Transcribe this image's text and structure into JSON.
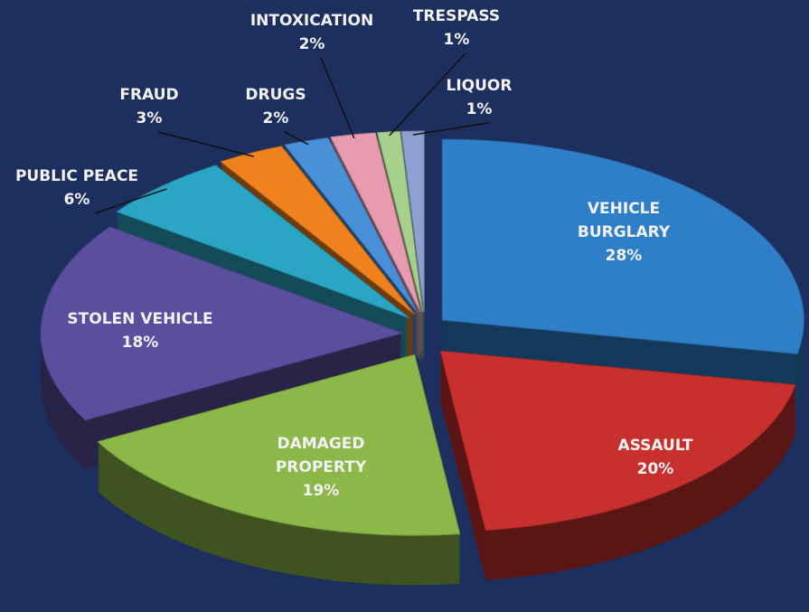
{
  "chart_data": {
    "type": "pie",
    "categories": [
      "VEHICLE BURGLARY",
      "ASSAULT",
      "DAMAGED PROPERTY",
      "STOLEN VEHICLE",
      "PUBLIC PEACE",
      "FRAUD",
      "DRUGS",
      "INTOXICATION",
      "TRESPASS",
      "LIQUOR"
    ],
    "values": [
      28,
      20,
      19,
      18,
      6,
      3,
      2,
      2,
      1,
      1
    ],
    "value_labels": [
      "28%",
      "20%",
      "19%",
      "18%",
      "6%",
      "3%",
      "2%",
      "2%",
      "1%",
      "1%"
    ],
    "colors": [
      "#2f7fc8",
      "#c8302e",
      "#8cb84a",
      "#5a4f9e",
      "#2aa6c4",
      "#f0821e",
      "#4a90d9",
      "#e89ab0",
      "#a8d08d",
      "#8e9fd1"
    ]
  }
}
